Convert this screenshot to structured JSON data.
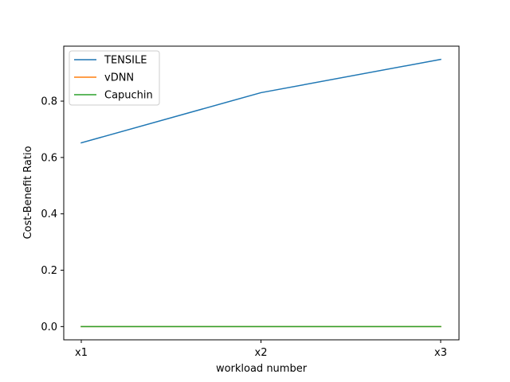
{
  "chart_data": {
    "type": "line",
    "categories": [
      "x1",
      "x2",
      "x3"
    ],
    "xlabel": "workload number",
    "ylabel": "Cost-Benefit Ratio",
    "ylim": [
      -0.047,
      0.995
    ],
    "yticks": [
      0.0,
      0.2,
      0.4,
      0.6,
      0.8
    ],
    "ytick_labels": [
      "0.0",
      "0.2",
      "0.4",
      "0.6",
      "0.8"
    ],
    "grid": false,
    "legend_position": "top-left",
    "series": [
      {
        "name": "TENSILE",
        "values": [
          0.652,
          0.83,
          0.948
        ],
        "color": "#1f77b4"
      },
      {
        "name": "vDNN",
        "values": [
          0.0,
          0.0,
          0.0
        ],
        "color": "#ff7f0e"
      },
      {
        "name": "Capuchin",
        "values": [
          0.0,
          0.0,
          0.0
        ],
        "color": "#2ca02c"
      }
    ]
  }
}
